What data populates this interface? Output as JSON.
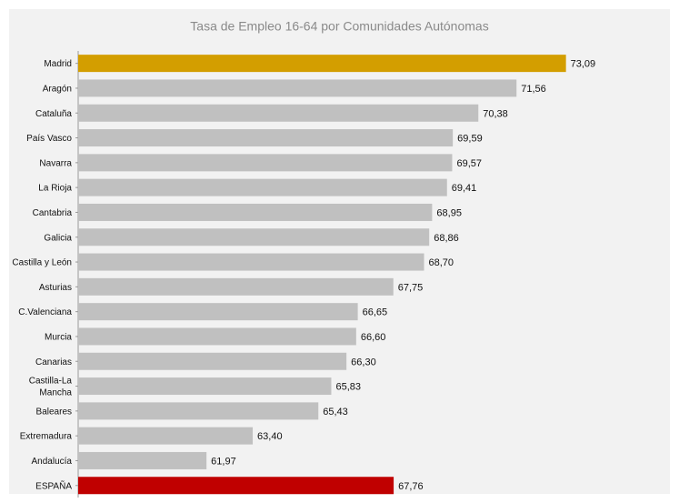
{
  "chart_data": {
    "type": "bar",
    "orientation": "horizontal",
    "title": "Tasa de Empleo 16-64 por Comunidades Autónomas",
    "xlabel": "",
    "ylabel": "",
    "xlim": [
      58,
      74
    ],
    "grid": false,
    "legend": "none",
    "categories": [
      "Madrid",
      "Aragón",
      "Cataluña",
      "País Vasco",
      "Navarra",
      "La Rioja",
      "Cantabria",
      "Galicia",
      "Castilla y León",
      "Asturias",
      "C.Valenciana",
      "Murcia",
      "Canarias",
      "Castilla-La Mancha",
      "Baleares",
      "Extremadura",
      "Andalucía",
      "ESPAÑA"
    ],
    "values": [
      73.09,
      71.56,
      70.38,
      69.59,
      69.57,
      69.41,
      68.95,
      68.86,
      68.7,
      67.75,
      66.65,
      66.6,
      66.3,
      65.83,
      65.43,
      63.4,
      61.97,
      67.76
    ],
    "value_labels": [
      "73,09",
      "71,56",
      "70,38",
      "69,59",
      "69,57",
      "69,41",
      "68,95",
      "68,86",
      "68,70",
      "67,75",
      "66,65",
      "66,60",
      "66,30",
      "65,83",
      "65,43",
      "63,40",
      "61,97",
      "67,76"
    ],
    "colors": {
      "default": "#c0c0c0",
      "highlight_top": "#d39e00",
      "highlight_total": "#c00000",
      "plot_background": "#f2f2f2",
      "outer_background": "#ffffff",
      "title": "#8a8a8a",
      "text": "#111111"
    },
    "highlight_indices": {
      "0": "highlight_top",
      "17": "highlight_total"
    }
  }
}
